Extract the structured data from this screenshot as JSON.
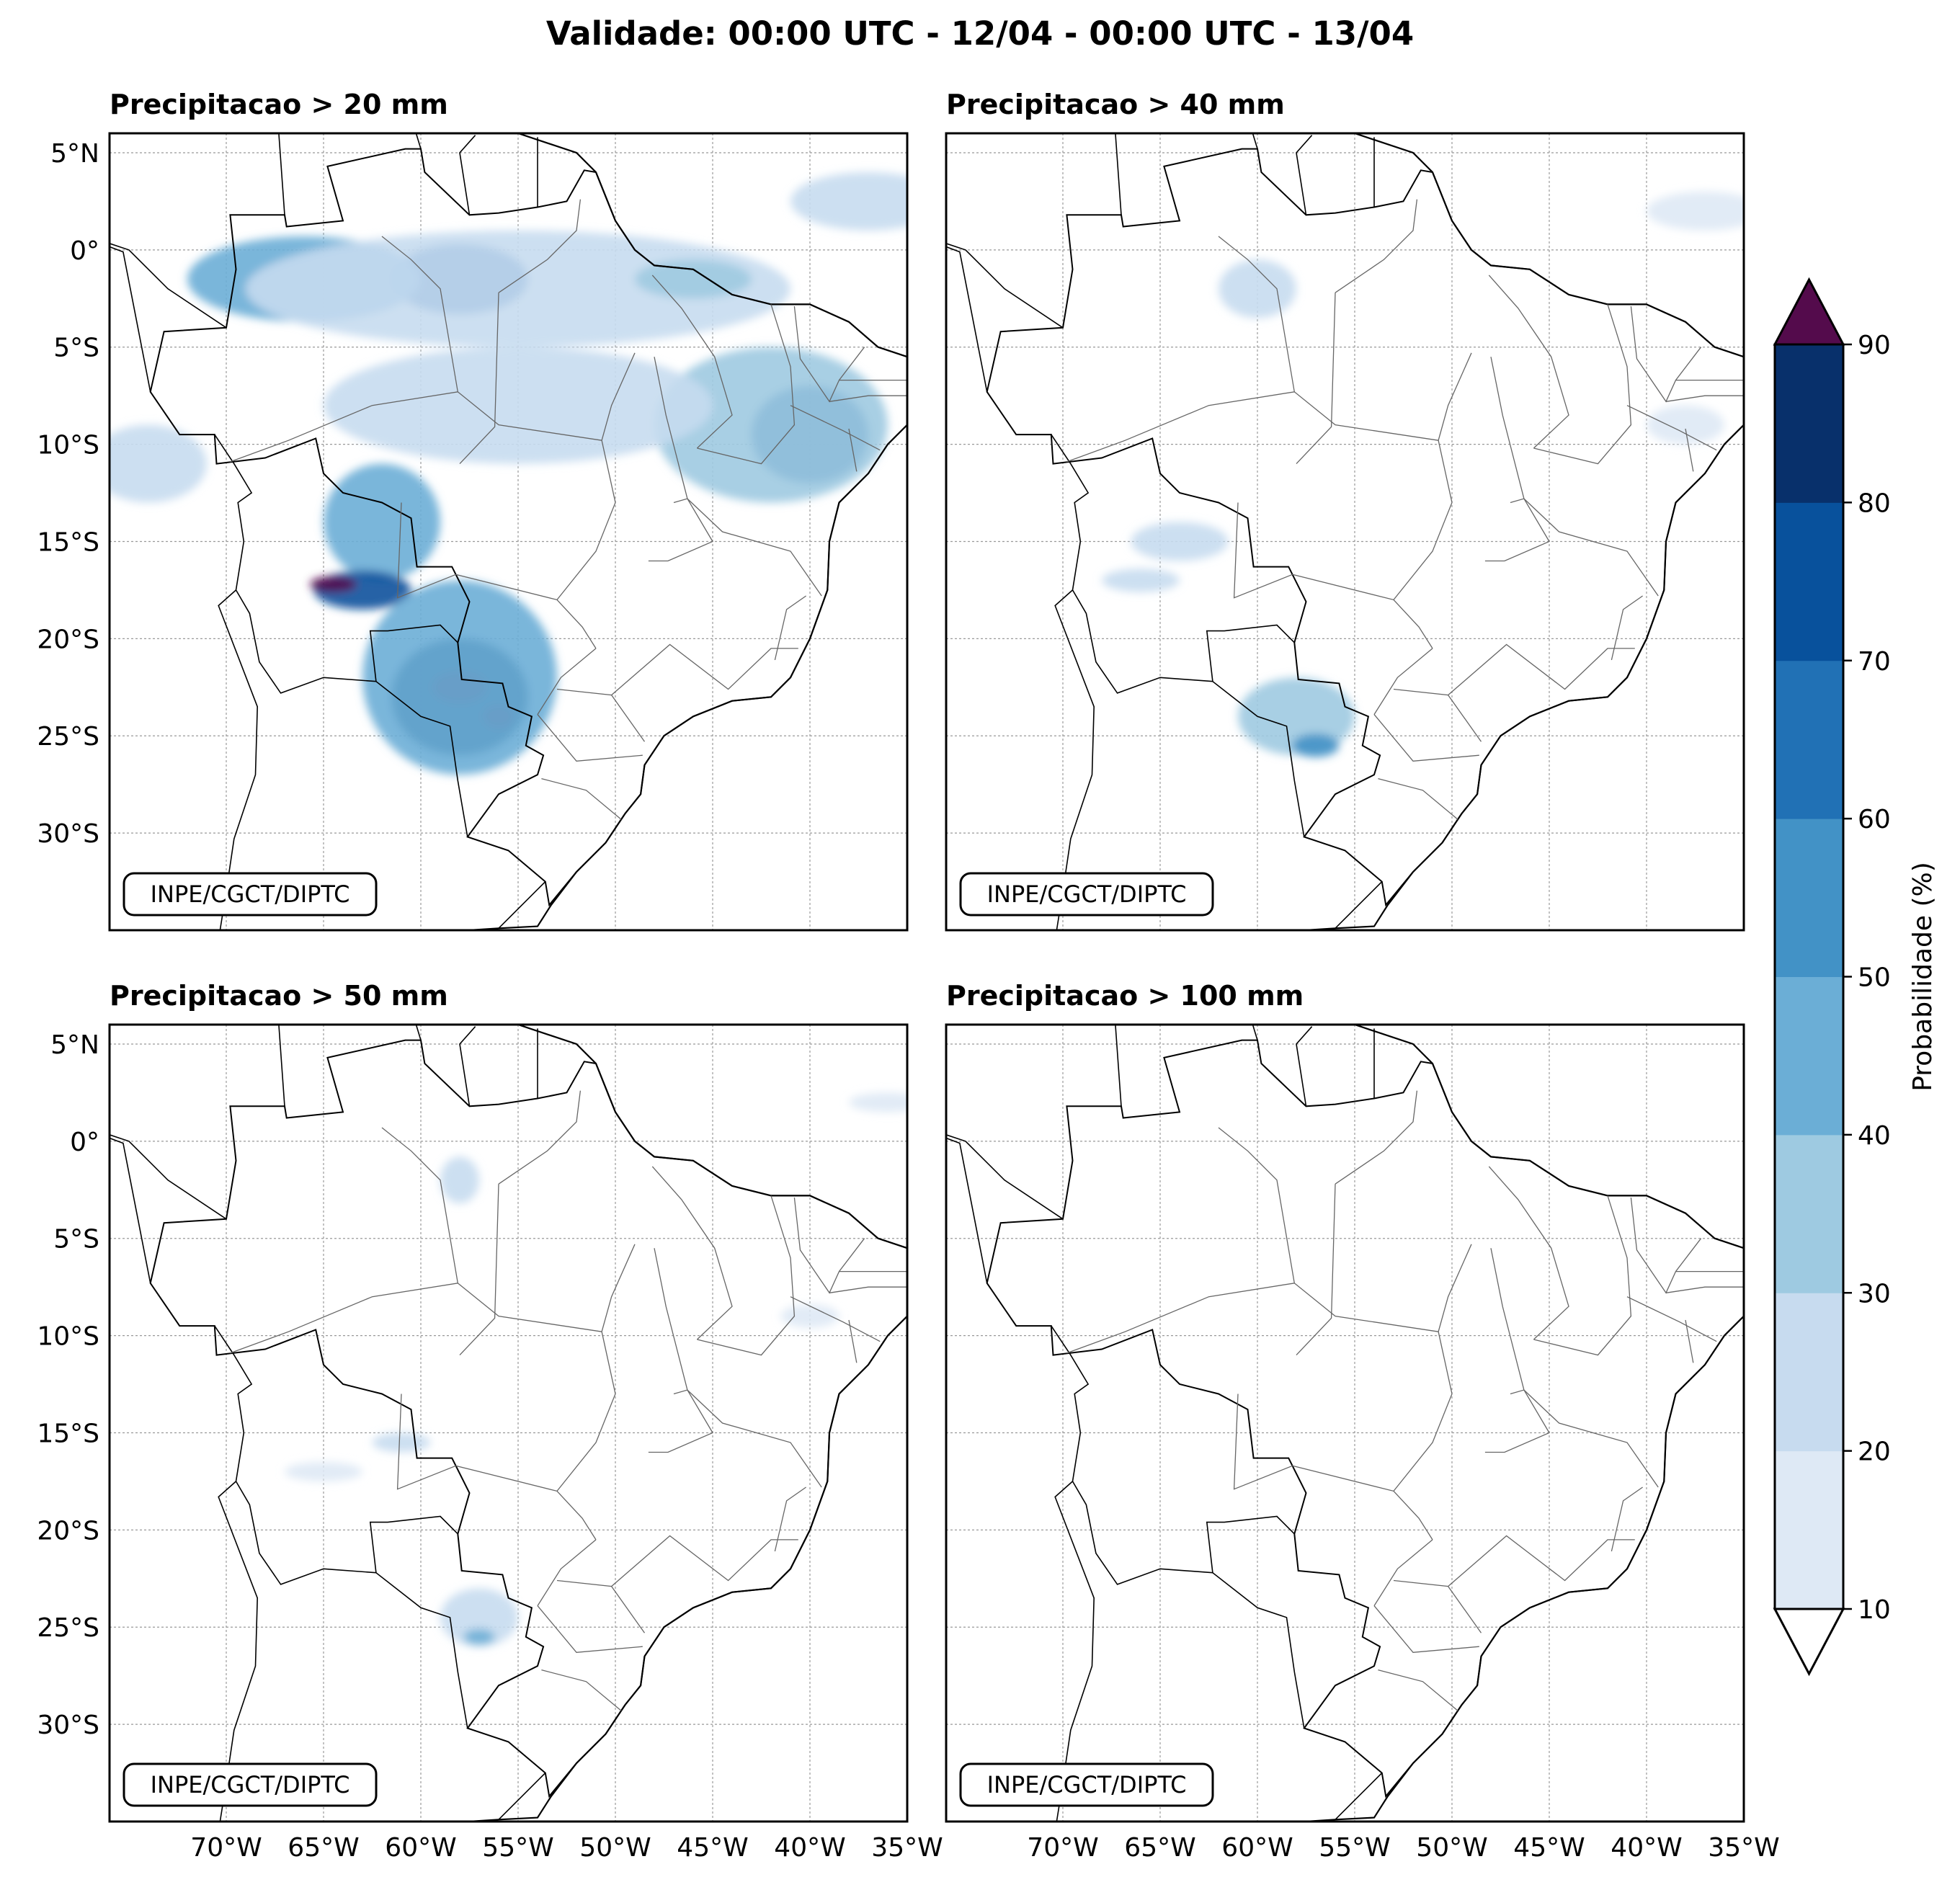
{
  "figure_title": "Validade: 00:00 UTC - 12/04 - 00:00 UTC - 13/04",
  "panels": [
    {
      "title": "Precipitacao > 20 mm",
      "credit": "INPE/CGCT/DIPTC"
    },
    {
      "title": "Precipitacao > 40 mm",
      "credit": "INPE/CGCT/DIPTC"
    },
    {
      "title": "Precipitacao > 50 mm",
      "credit": "INPE/CGCT/DIPTC"
    },
    {
      "title": "Precipitacao > 100 mm",
      "credit": "INPE/CGCT/DIPTC"
    }
  ],
  "map_extent": {
    "lon": [
      -76,
      -35
    ],
    "lat": [
      -35,
      6
    ]
  },
  "lon_ticks": [
    {
      "value": -70,
      "label": "70°W"
    },
    {
      "value": -65,
      "label": "65°W"
    },
    {
      "value": -60,
      "label": "60°W"
    },
    {
      "value": -55,
      "label": "55°W"
    },
    {
      "value": -50,
      "label": "50°W"
    },
    {
      "value": -45,
      "label": "45°W"
    },
    {
      "value": -40,
      "label": "40°W"
    },
    {
      "value": -35,
      "label": "35°W"
    }
  ],
  "lat_ticks": [
    {
      "value": 5,
      "label": "5°N"
    },
    {
      "value": 0,
      "label": "0°"
    },
    {
      "value": -5,
      "label": "5°S"
    },
    {
      "value": -10,
      "label": "10°S"
    },
    {
      "value": -15,
      "label": "15°S"
    },
    {
      "value": -20,
      "label": "20°S"
    },
    {
      "value": -25,
      "label": "25°S"
    },
    {
      "value": -30,
      "label": "30°S"
    }
  ],
  "colorbar": {
    "label": "Probabilidade (%)",
    "levels": [
      10,
      20,
      30,
      40,
      50,
      60,
      70,
      80,
      90
    ],
    "level_labels": [
      "10",
      "20",
      "30",
      "40",
      "50",
      "60",
      "70",
      "80",
      "90"
    ],
    "colors": [
      "#dee9f5",
      "#c7dbef",
      "#9ecae1",
      "#6baed6",
      "#4292c6",
      "#2171b5",
      "#08519c",
      "#08306b"
    ],
    "extend_max_color": "#540b4c",
    "extend_min_color": "#ffffff"
  },
  "probability_areas": [
    [
      {
        "lon": -58,
        "lat": -1.5,
        "level": 6,
        "rx": 3.5,
        "ry": 1.8
      },
      {
        "lon": -66,
        "lat": -1.5,
        "level": 3,
        "rx": 6,
        "ry": 2.2
      },
      {
        "lon": -55,
        "lat": -2,
        "level": 1,
        "rx": 14,
        "ry": 3
      },
      {
        "lon": -46,
        "lat": -1.5,
        "level": 2,
        "rx": 3,
        "ry": 1
      },
      {
        "lon": -37,
        "lat": 2.5,
        "level": 1,
        "rx": 4,
        "ry": 1.5
      },
      {
        "lon": -40,
        "lat": -9.5,
        "level": 6,
        "rx": 3,
        "ry": 2.5
      },
      {
        "lon": -42,
        "lat": -9,
        "level": 2,
        "rx": 6,
        "ry": 4
      },
      {
        "lon": -55,
        "lat": -8,
        "level": 1,
        "rx": 10,
        "ry": 3
      },
      {
        "lon": -62,
        "lat": -14,
        "level": 3,
        "rx": 3,
        "ry": 3
      },
      {
        "lon": -63,
        "lat": -17.5,
        "level": 6,
        "rx": 2.5,
        "ry": 1
      },
      {
        "lon": -64.5,
        "lat": -17.2,
        "level": 8,
        "rx": 1.2,
        "ry": 0.4
      },
      {
        "lon": -58,
        "lat": -23,
        "level": 7,
        "rx": 3.5,
        "ry": 3
      },
      {
        "lon": -58,
        "lat": -22.5,
        "level": 8,
        "rx": 1.4,
        "ry": 0.8
      },
      {
        "lon": -56,
        "lat": -24,
        "level": 8,
        "rx": 0.8,
        "ry": 0.6
      },
      {
        "lon": -58,
        "lat": -22,
        "level": 3,
        "rx": 5,
        "ry": 5
      },
      {
        "lon": -74,
        "lat": -11,
        "level": 1,
        "rx": 3,
        "ry": 2
      }
    ],
    [
      {
        "lon": -60,
        "lat": -2,
        "level": 1,
        "rx": 2,
        "ry": 1.5
      },
      {
        "lon": -37,
        "lat": 2,
        "level": 0,
        "rx": 3,
        "ry": 1
      },
      {
        "lon": -64,
        "lat": -15,
        "level": 1,
        "rx": 2.5,
        "ry": 1
      },
      {
        "lon": -66,
        "lat": -17,
        "level": 1,
        "rx": 2,
        "ry": 0.6
      },
      {
        "lon": -58,
        "lat": -24,
        "level": 2,
        "rx": 3,
        "ry": 2
      },
      {
        "lon": -57,
        "lat": -25.5,
        "level": 4,
        "rx": 1.2,
        "ry": 0.6
      },
      {
        "lon": -38,
        "lat": -9,
        "level": 0,
        "rx": 2,
        "ry": 1
      }
    ],
    [
      {
        "lon": -58,
        "lat": -2,
        "level": 1,
        "rx": 1,
        "ry": 1.2
      },
      {
        "lon": -36,
        "lat": 2,
        "level": 0,
        "rx": 2,
        "ry": 0.5
      },
      {
        "lon": -61,
        "lat": -15.5,
        "level": 1,
        "rx": 1.5,
        "ry": 0.5
      },
      {
        "lon": -65,
        "lat": -17,
        "level": 0,
        "rx": 2,
        "ry": 0.5
      },
      {
        "lon": -57,
        "lat": -24.5,
        "level": 1,
        "rx": 2,
        "ry": 1.5
      },
      {
        "lon": -57,
        "lat": -25.5,
        "level": 3,
        "rx": 0.8,
        "ry": 0.4
      },
      {
        "lon": -40,
        "lat": -9,
        "level": 0,
        "rx": 1.5,
        "ry": 0.6
      }
    ],
    []
  ]
}
